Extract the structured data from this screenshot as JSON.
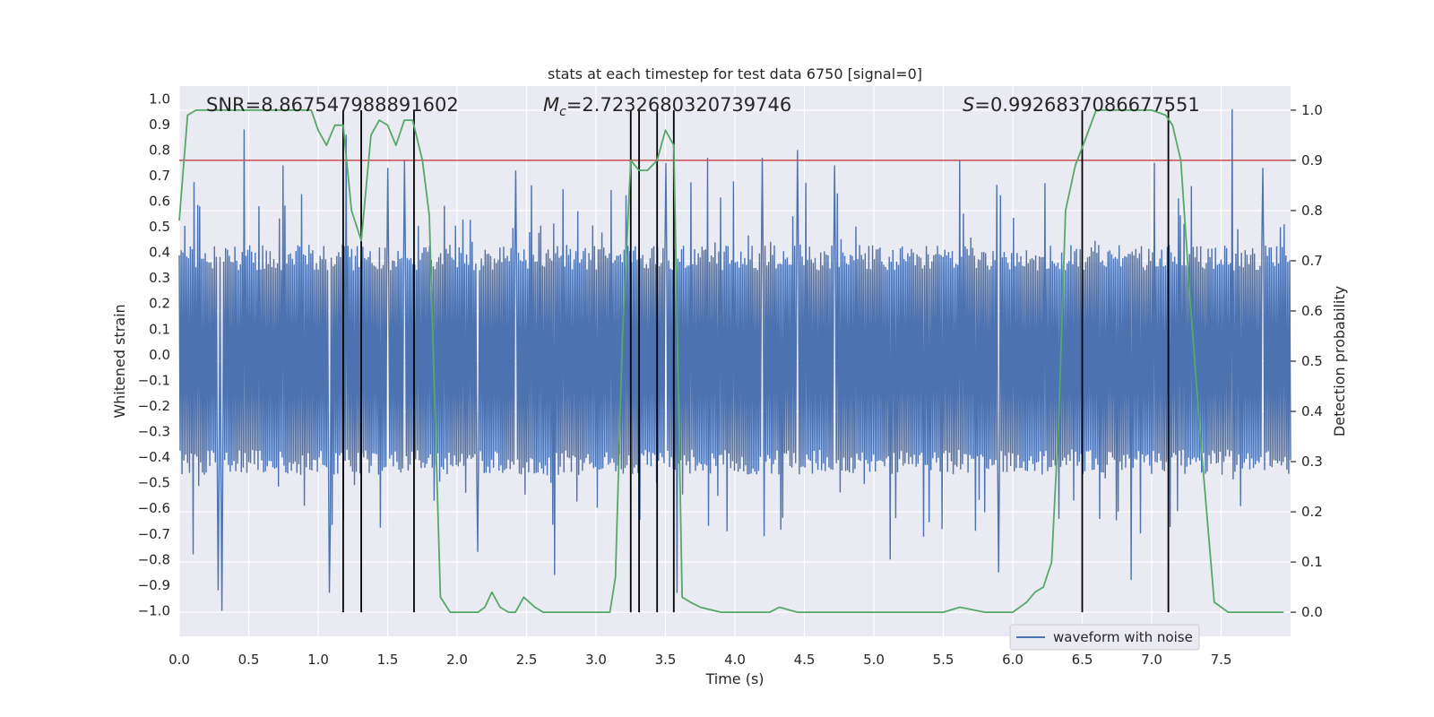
{
  "chart_data": {
    "type": "line",
    "title": "stats at each timestep for test data 6750 [signal=0]",
    "xlabel": "Time (s)",
    "ylabel": "Whitened strain",
    "y2label": "Detection probability",
    "xlim": [
      0.0,
      8.0
    ],
    "ylim": [
      -1.1,
      1.05
    ],
    "y2lim": [
      -0.048,
      1.048
    ],
    "xticks": [
      0.0,
      0.5,
      1.0,
      1.5,
      2.0,
      2.5,
      3.0,
      3.5,
      4.0,
      4.5,
      5.0,
      5.5,
      6.0,
      6.5,
      7.0,
      7.5
    ],
    "xtick_labels": [
      "0.0",
      "0.5",
      "1.0",
      "1.5",
      "2.0",
      "2.5",
      "3.0",
      "3.5",
      "4.0",
      "4.5",
      "5.0",
      "5.5",
      "6.0",
      "6.5",
      "7.0",
      "7.5"
    ],
    "yticks": [
      -1.0,
      -0.9,
      -0.8,
      -0.7,
      -0.6,
      -0.5,
      -0.4,
      -0.3,
      -0.2,
      -0.1,
      0.0,
      0.1,
      0.2,
      0.3,
      0.4,
      0.5,
      0.6,
      0.7,
      0.8,
      0.9,
      1.0
    ],
    "ytick_labels": [
      "−1.0",
      "−0.9",
      "−0.8",
      "−0.7",
      "−0.6",
      "−0.5",
      "−0.4",
      "−0.3",
      "−0.2",
      "−0.1",
      "0.0",
      "0.1",
      "0.2",
      "0.3",
      "0.4",
      "0.5",
      "0.6",
      "0.7",
      "0.8",
      "0.9",
      "1.0"
    ],
    "y2ticks": [
      0.0,
      0.1,
      0.2,
      0.3,
      0.4,
      0.5,
      0.6,
      0.7,
      0.8,
      0.9,
      1.0
    ],
    "y2tick_labels": [
      "0.0",
      "0.1",
      "0.2",
      "0.3",
      "0.4",
      "0.5",
      "0.6",
      "0.7",
      "0.8",
      "0.9",
      "1.0"
    ],
    "annotations": {
      "snr": "SNR=8.867547988891602",
      "mc_symbol": "M",
      "mc_sub": "c",
      "mc_value": "=2.7232680320739746",
      "s_symbol": "S",
      "s_value": "=0.9926837086677551"
    },
    "legend": {
      "label": "waveform with noise",
      "position": "lower-right"
    },
    "threshold": {
      "value": 0.9,
      "axis": "y2",
      "color": "#c44e52"
    },
    "event_markers_s": [
      1.18,
      1.31,
      1.69,
      3.25,
      3.31,
      3.44,
      3.56,
      6.5,
      7.12
    ],
    "waveform": {
      "name": "waveform with noise",
      "color": "#4c72b0",
      "n_points": 1200,
      "envelope": 0.35,
      "spikes": [
        {
          "t": 0.31,
          "v": -1.0
        },
        {
          "t": 0.28,
          "v": -0.92
        },
        {
          "t": 0.1,
          "v": -0.78
        },
        {
          "t": 0.47,
          "v": 0.88
        },
        {
          "t": 0.75,
          "v": 0.74
        },
        {
          "t": 1.08,
          "v": -0.93
        },
        {
          "t": 1.2,
          "v": 0.86
        },
        {
          "t": 1.5,
          "v": 0.73
        },
        {
          "t": 1.62,
          "v": 0.76
        },
        {
          "t": 2.15,
          "v": -0.77
        },
        {
          "t": 2.42,
          "v": 0.72
        },
        {
          "t": 2.7,
          "v": -0.86
        },
        {
          "t": 3.5,
          "v": 0.75
        },
        {
          "t": 3.58,
          "v": -0.93
        },
        {
          "t": 3.8,
          "v": 0.77
        },
        {
          "t": 4.2,
          "v": 0.77
        },
        {
          "t": 4.45,
          "v": 0.8
        },
        {
          "t": 4.72,
          "v": 0.74
        },
        {
          "t": 5.12,
          "v": -0.8
        },
        {
          "t": 5.62,
          "v": 0.76
        },
        {
          "t": 5.9,
          "v": -0.85
        },
        {
          "t": 6.85,
          "v": -0.88
        },
        {
          "t": 7.02,
          "v": 0.75
        },
        {
          "t": 7.58,
          "v": 0.96
        },
        {
          "t": 7.8,
          "v": 0.73
        }
      ]
    },
    "detection_probability": {
      "name": "detection probability",
      "color": "#55a868",
      "x": [
        0.0,
        0.06,
        0.12,
        0.5,
        0.85,
        0.95,
        1.0,
        1.06,
        1.12,
        1.18,
        1.24,
        1.31,
        1.38,
        1.44,
        1.5,
        1.56,
        1.62,
        1.68,
        1.75,
        1.8,
        1.88,
        1.95,
        2.05,
        2.15,
        2.2,
        2.25,
        2.31,
        2.37,
        2.42,
        2.48,
        2.56,
        2.62,
        2.72,
        2.95,
        3.1,
        3.14,
        3.19,
        3.25,
        3.31,
        3.37,
        3.44,
        3.5,
        3.56,
        3.62,
        3.68,
        3.75,
        3.9,
        4.1,
        4.25,
        4.32,
        4.45,
        4.8,
        5.3,
        5.5,
        5.62,
        5.8,
        6.0,
        6.1,
        6.16,
        6.22,
        6.28,
        6.33,
        6.38,
        6.45,
        6.52,
        6.6,
        6.66,
        6.75,
        6.85,
        7.0,
        7.1,
        7.15,
        7.21,
        7.28,
        7.35,
        7.45,
        7.55,
        7.62,
        7.7,
        7.78,
        7.85,
        7.95
      ],
      "y": [
        0.78,
        0.99,
        1.0,
        1.0,
        1.0,
        1.0,
        0.96,
        0.93,
        0.97,
        0.97,
        0.8,
        0.74,
        0.95,
        0.98,
        0.97,
        0.93,
        0.98,
        0.98,
        0.9,
        0.79,
        0.03,
        0.0,
        0.0,
        0.0,
        0.01,
        0.04,
        0.01,
        0.0,
        0.0,
        0.03,
        0.01,
        0.0,
        0.0,
        0.0,
        0.0,
        0.07,
        0.55,
        0.9,
        0.88,
        0.88,
        0.9,
        0.96,
        0.93,
        0.03,
        0.02,
        0.01,
        0.0,
        0.0,
        0.0,
        0.01,
        0.0,
        0.0,
        0.0,
        0.0,
        0.01,
        0.0,
        0.0,
        0.02,
        0.04,
        0.05,
        0.1,
        0.38,
        0.8,
        0.89,
        0.94,
        1.0,
        1.0,
        1.0,
        1.0,
        1.0,
        0.99,
        0.97,
        0.9,
        0.61,
        0.35,
        0.02,
        0.0,
        0.0,
        0.0,
        0.0,
        0.0,
        0.0
      ]
    }
  }
}
